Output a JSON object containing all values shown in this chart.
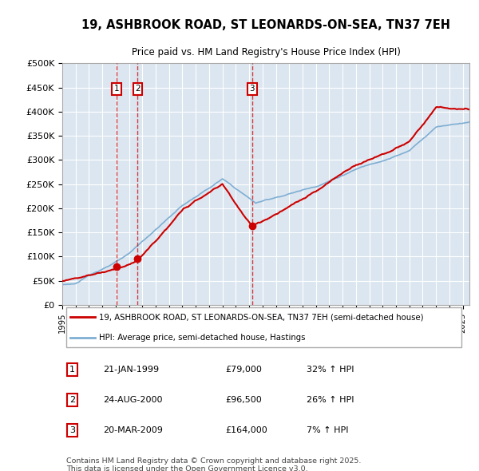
{
  "title_line1": "19, ASHBROOK ROAD, ST LEONARDS-ON-SEA, TN37 7EH",
  "title_line2": "Price paid vs. HM Land Registry's House Price Index (HPI)",
  "xlim_start": 1995.0,
  "xlim_end": 2025.5,
  "ylim_min": 0,
  "ylim_max": 500000,
  "yticks": [
    0,
    50000,
    100000,
    150000,
    200000,
    250000,
    300000,
    350000,
    400000,
    450000,
    500000
  ],
  "ytick_labels": [
    "£0",
    "£50K",
    "£100K",
    "£150K",
    "£200K",
    "£250K",
    "£300K",
    "£350K",
    "£400K",
    "£450K",
    "£500K"
  ],
  "background_color": "#dce6f0",
  "grid_color": "#ffffff",
  "red_line_color": "#cc0000",
  "blue_line_color": "#7eaed3",
  "transactions": [
    {
      "year": 1999.06,
      "price": 79000,
      "label": "1",
      "date": "21-JAN-1999",
      "pct": "32% ↑ HPI"
    },
    {
      "year": 2000.65,
      "price": 96500,
      "label": "2",
      "date": "24-AUG-2000",
      "pct": "26% ↑ HPI"
    },
    {
      "year": 2009.22,
      "price": 164000,
      "label": "3",
      "date": "20-MAR-2009",
      "pct": "7% ↑ HPI"
    }
  ],
  "legend_red_label": "19, ASHBROOK ROAD, ST LEONARDS-ON-SEA, TN37 7EH (semi-detached house)",
  "legend_blue_label": "HPI: Average price, semi-detached house, Hastings",
  "prices_display": [
    "£79,000",
    "£96,500",
    "£164,000"
  ],
  "footnote": "Contains HM Land Registry data © Crown copyright and database right 2025.\nThis data is licensed under the Open Government Licence v3.0.",
  "xticks": [
    1995,
    1996,
    1997,
    1998,
    1999,
    2000,
    2001,
    2002,
    2003,
    2004,
    2005,
    2006,
    2007,
    2008,
    2009,
    2010,
    2011,
    2012,
    2013,
    2014,
    2015,
    2016,
    2017,
    2018,
    2019,
    2020,
    2021,
    2022,
    2023,
    2024,
    2025
  ]
}
